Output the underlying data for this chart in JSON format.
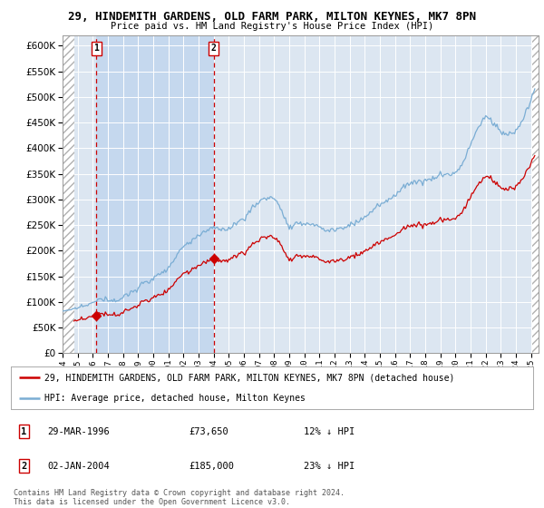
{
  "title_line1": "29, HINDEMITH GARDENS, OLD FARM PARK, MILTON KEYNES, MK7 8PN",
  "title_line2": "Price paid vs. HM Land Registry's House Price Index (HPI)",
  "ylim": [
    0,
    620000
  ],
  "yticks": [
    0,
    50000,
    100000,
    150000,
    200000,
    250000,
    300000,
    350000,
    400000,
    450000,
    500000,
    550000,
    600000
  ],
  "ytick_labels": [
    "£0",
    "£50K",
    "£100K",
    "£150K",
    "£200K",
    "£250K",
    "£300K",
    "£350K",
    "£400K",
    "£450K",
    "£500K",
    "£550K",
    "£600K"
  ],
  "hpi_color": "#7aadd4",
  "price_color": "#cc0000",
  "marker_color": "#cc0000",
  "vline_color": "#cc0000",
  "background_color": "#dce6f1",
  "shade_color": "#c5d8ee",
  "sale1_year": 1996.24,
  "sale1_price": 73650,
  "sale2_year": 2004.01,
  "sale2_price": 185000,
  "legend_line1": "29, HINDEMITH GARDENS, OLD FARM PARK, MILTON KEYNES, MK7 8PN (detached house)",
  "legend_line2": "HPI: Average price, detached house, Milton Keynes",
  "table_row1_num": "1",
  "table_row1_date": "29-MAR-1996",
  "table_row1_price": "£73,650",
  "table_row1_hpi": "12% ↓ HPI",
  "table_row2_num": "2",
  "table_row2_date": "02-JAN-2004",
  "table_row2_price": "£185,000",
  "table_row2_hpi": "23% ↓ HPI",
  "footer": "Contains HM Land Registry data © Crown copyright and database right 2024.\nThis data is licensed under the Open Government Licence v3.0.",
  "xmin": 1994.0,
  "xmax": 2025.5
}
